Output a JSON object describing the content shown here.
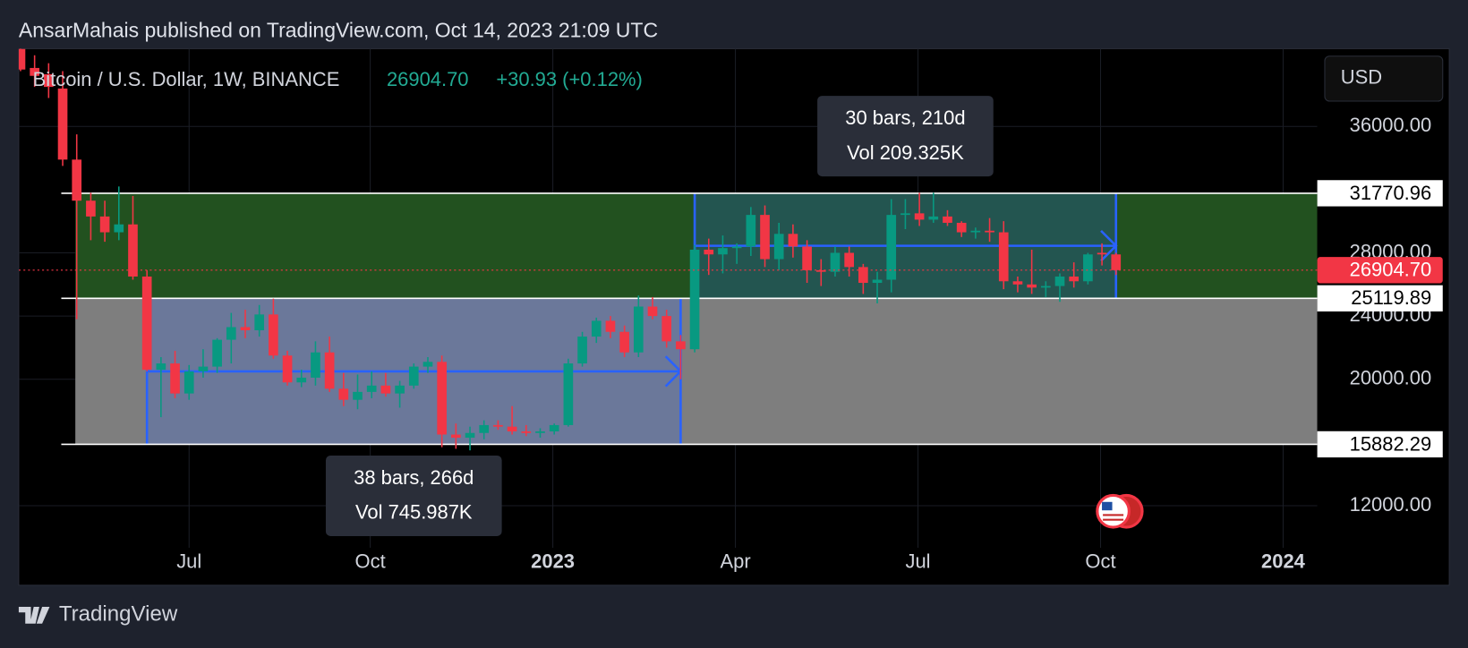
{
  "header": "AnsarMahais published on TradingView.com, Oct 14, 2023 21:09 UTC",
  "footer": "TradingView",
  "currency": "USD",
  "chart_data": {
    "type": "candlestick",
    "title": "Bitcoin / U.S. Dollar, 1W, BINANCE",
    "last_price": 26904.7,
    "last_price_label": "26904.70",
    "change": "+30.93 (+0.12%)",
    "up_color": "#089981",
    "down_color": "#f23645",
    "x": [
      0,
      1,
      2,
      3,
      4,
      5,
      6,
      7,
      8,
      9,
      10,
      11,
      12,
      13,
      14,
      15,
      16,
      17,
      18,
      19,
      20,
      21,
      22,
      23,
      24,
      25,
      26,
      27,
      28,
      29,
      30,
      31,
      32,
      33,
      34,
      35,
      36,
      37,
      38,
      39,
      40,
      41,
      42,
      43,
      44,
      45,
      46,
      47,
      48,
      49,
      50,
      51,
      52,
      53,
      54,
      55,
      56,
      57,
      58,
      59,
      60,
      61,
      62,
      63,
      64,
      65,
      66,
      67,
      68,
      69,
      70,
      71,
      72,
      73,
      74,
      75,
      76,
      77,
      78
    ],
    "open": [
      40900,
      39700,
      39300,
      38400,
      33900,
      31300,
      30300,
      29300,
      29800,
      26500,
      20600,
      21000,
      19100,
      20500,
      20800,
      22500,
      23300,
      23100,
      24100,
      21500,
      19800,
      20100,
      21700,
      19400,
      18700,
      19200,
      19600,
      19100,
      19600,
      20800,
      21100,
      16500,
      16300,
      16600,
      17100,
      17000,
      16700,
      16600,
      16700,
      17100,
      21000,
      22700,
      23700,
      23000,
      21700,
      24600,
      24000,
      22400,
      21900,
      28200,
      27900,
      28300,
      28400,
      30400,
      27600,
      29200,
      28400,
      26900,
      26800,
      28000,
      27100,
      26100,
      26300,
      30400,
      30500,
      30100,
      30300,
      29900,
      29300,
      29400,
      29300,
      26200,
      26000,
      25800,
      25900,
      26500,
      26200,
      28000,
      27900
    ],
    "high": [
      41500,
      40500,
      40000,
      39500,
      35500,
      31800,
      31300,
      32200,
      31600,
      26900,
      21400,
      21800,
      20900,
      21900,
      22600,
      24200,
      24400,
      24700,
      25100,
      21800,
      20600,
      22400,
      22700,
      20400,
      20300,
      20500,
      20400,
      19900,
      21000,
      21400,
      21500,
      17200,
      17000,
      17400,
      17400,
      18300,
      17100,
      16900,
      17200,
      21300,
      23000,
      23900,
      24000,
      23400,
      25300,
      25200,
      24400,
      22800,
      28500,
      28900,
      29100,
      28600,
      30900,
      31000,
      29900,
      29800,
      28800,
      27600,
      28400,
      28400,
      27300,
      26800,
      31400,
      31400,
      31800,
      31800,
      30700,
      30000,
      29600,
      30200,
      30000,
      26500,
      28200,
      26200,
      26700,
      27400,
      28000,
      28600,
      28000
    ],
    "low": [
      39500,
      38500,
      37800,
      33500,
      23800,
      28800,
      28700,
      28800,
      26300,
      20500,
      17600,
      18800,
      18700,
      20100,
      20400,
      21000,
      22600,
      22700,
      21300,
      19600,
      19500,
      19600,
      19200,
      18300,
      18100,
      18800,
      18900,
      18200,
      19400,
      20400,
      15700,
      15600,
      15500,
      16200,
      16800,
      16500,
      16400,
      16300,
      16500,
      17000,
      20800,
      22300,
      22600,
      21400,
      21400,
      23800,
      22000,
      20000,
      21700,
      26600,
      26700,
      27300,
      27800,
      27100,
      26900,
      27700,
      26100,
      25900,
      26500,
      26500,
      25400,
      24800,
      25500,
      29500,
      29700,
      29900,
      29700,
      29000,
      28900,
      28700,
      25700,
      25500,
      25400,
      25200,
      24900,
      25800,
      26000,
      27200,
      26600
    ],
    "close": [
      39600,
      39200,
      38500,
      33900,
      31300,
      30300,
      29300,
      29800,
      26500,
      20600,
      21000,
      19100,
      20500,
      20800,
      22500,
      23300,
      23100,
      24100,
      21500,
      19800,
      20100,
      21700,
      19400,
      18700,
      19200,
      19600,
      19100,
      19600,
      20800,
      21100,
      16500,
      16300,
      16600,
      17100,
      17000,
      16700,
      16600,
      16700,
      17100,
      21000,
      22700,
      23700,
      23000,
      21700,
      24600,
      24000,
      22400,
      21900,
      28200,
      27900,
      28300,
      28400,
      30400,
      27600,
      29200,
      28400,
      26900,
      26800,
      28000,
      27100,
      26100,
      26300,
      30400,
      30500,
      30100,
      30300,
      29900,
      29300,
      29400,
      29300,
      26200,
      26000,
      25800,
      25900,
      26500,
      26200,
      27900,
      27900,
      26904.7
    ],
    "xlim": [
      -0.13,
      92.33
    ],
    "xticks": [
      {
        "value": 12,
        "label": "Jul"
      },
      {
        "value": 24.9,
        "label": "Oct"
      },
      {
        "value": 37.9,
        "label": "2023",
        "bold": true
      },
      {
        "value": 50.9,
        "label": "Apr"
      },
      {
        "value": 63.9,
        "label": "Jul"
      },
      {
        "value": 76.9,
        "label": "Oct"
      },
      {
        "value": 89.9,
        "label": "2024",
        "bold": true
      }
    ],
    "ylim": [
      9333,
      40919
    ],
    "yticks": [
      {
        "value": 12000,
        "label": "12000.00"
      },
      {
        "value": 20000,
        "label": "20000.00"
      },
      {
        "value": 24000,
        "label": "24000.00"
      },
      {
        "value": 28000,
        "label": "28000.00"
      },
      {
        "value": 36000,
        "label": "36000.00"
      }
    ],
    "grid": true,
    "levels": [
      31770.96,
      25119.89,
      15882.29
    ],
    "zones": [
      {
        "high": 31770.96,
        "low": 25119.89,
        "start": 3.9,
        "color": "#22511f"
      },
      {
        "high": 25119.89,
        "low": 15882.29,
        "start": 3.9,
        "color": "#7e7e7e"
      }
    ],
    "ranges": [
      {
        "start": 9,
        "end": 47,
        "low": 15882.29,
        "high": 25119.89,
        "bars": "38 bars, 266d",
        "vol": "Vol 745.987K"
      },
      {
        "start": 48,
        "end": 78,
        "low": 25119.89,
        "high": 31770.96,
        "bars": "30 bars, 210d",
        "vol": "Vol 209.325K"
      }
    ]
  }
}
